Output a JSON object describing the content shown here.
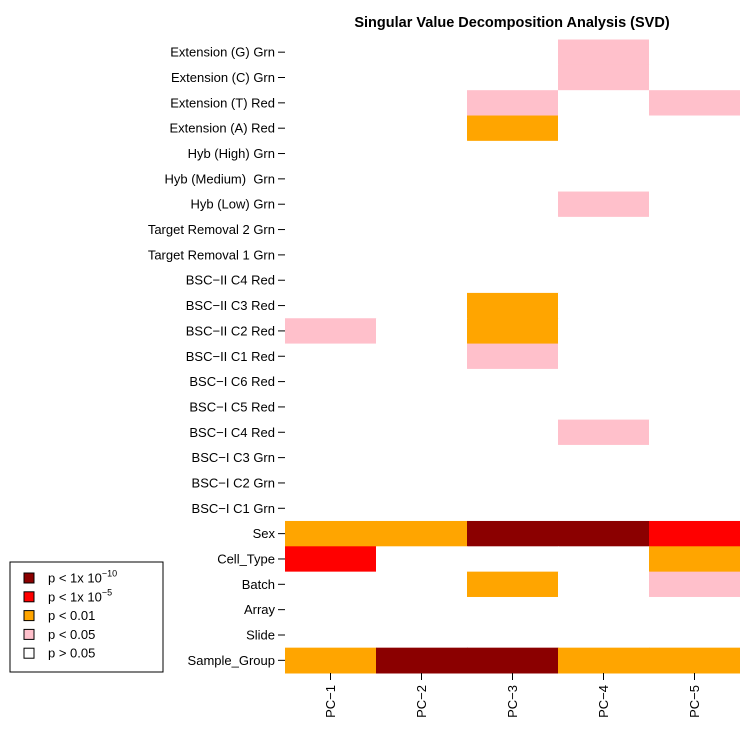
{
  "chart_data": {
    "type": "heatmap",
    "title": "Singular Value Decomposition Analysis (SVD)",
    "rows": [
      "Extension (G) Grn",
      "Extension (C) Grn",
      "Extension (T) Red",
      "Extension (A) Red",
      "Hyb (High) Grn",
      "Hyb (Medium)  Grn",
      "Hyb (Low) Grn",
      "Target Removal 2 Grn",
      "Target Removal 1 Grn",
      "BSC−II C4 Red",
      "BSC−II C3 Red",
      "BSC−II C2 Red",
      "BSC−II C1 Red",
      "BSC−I C6 Red",
      "BSC−I C5 Red",
      "BSC−I C4 Red",
      "BSC−I C3 Grn",
      "BSC−I C2 Grn",
      "BSC−I C1 Grn",
      "Sex",
      "Cell_Type",
      "Batch",
      "Array",
      "Slide",
      "Sample_Group"
    ],
    "columns": [
      "PC−1",
      "PC−2",
      "PC−3",
      "PC−4",
      "PC−5"
    ],
    "levels": [
      {
        "label": "p < 1x 10",
        "sup": "−10",
        "color": "#8b0000"
      },
      {
        "label": "p < 1x 10",
        "sup": "−5",
        "color": "#ff0000"
      },
      {
        "label": "p < 0.01",
        "color": "#ffa500"
      },
      {
        "label": "p < 0.05",
        "color": "#ffc0cb"
      },
      {
        "label": "p > 0.05",
        "color": "#ffffff"
      }
    ],
    "values": [
      [
        4,
        4,
        4,
        3,
        4
      ],
      [
        4,
        4,
        4,
        3,
        4
      ],
      [
        4,
        4,
        3,
        4,
        3
      ],
      [
        4,
        4,
        2,
        4,
        4
      ],
      [
        4,
        4,
        4,
        4,
        4
      ],
      [
        4,
        4,
        4,
        4,
        4
      ],
      [
        4,
        4,
        4,
        3,
        4
      ],
      [
        4,
        4,
        4,
        4,
        4
      ],
      [
        4,
        4,
        4,
        4,
        4
      ],
      [
        4,
        4,
        4,
        4,
        4
      ],
      [
        4,
        4,
        2,
        4,
        4
      ],
      [
        3,
        4,
        2,
        4,
        4
      ],
      [
        4,
        4,
        3,
        4,
        4
      ],
      [
        4,
        4,
        4,
        4,
        4
      ],
      [
        4,
        4,
        4,
        4,
        4
      ],
      [
        4,
        4,
        4,
        3,
        4
      ],
      [
        4,
        4,
        4,
        4,
        4
      ],
      [
        4,
        4,
        4,
        4,
        4
      ],
      [
        4,
        4,
        4,
        4,
        4
      ],
      [
        2,
        2,
        0,
        0,
        1
      ],
      [
        1,
        4,
        4,
        4,
        2
      ],
      [
        4,
        4,
        2,
        4,
        3
      ],
      [
        4,
        4,
        4,
        4,
        4
      ],
      [
        4,
        4,
        4,
        4,
        4
      ],
      [
        2,
        0,
        0,
        2,
        2
      ]
    ]
  }
}
